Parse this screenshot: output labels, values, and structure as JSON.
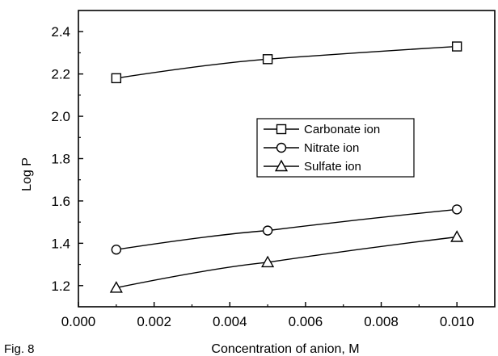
{
  "figure_label": "Fig. 8",
  "chart_data": {
    "type": "line",
    "title": "",
    "xlabel": "Concentration of anion, M",
    "ylabel": "Log P",
    "xlim": [
      0.0,
      0.011
    ],
    "ylim": [
      1.1,
      2.5
    ],
    "x_ticks": [
      0.0,
      0.002,
      0.004,
      0.006,
      0.008,
      0.01
    ],
    "x_tick_labels": [
      "0.000",
      "0.002",
      "0.004",
      "0.006",
      "0.008",
      "0.010"
    ],
    "y_ticks": [
      1.2,
      1.4,
      1.6,
      1.8,
      2.0,
      2.2,
      2.4
    ],
    "y_tick_labels": [
      "1.2",
      "1.4",
      "1.6",
      "1.8",
      "2.0",
      "2.2",
      "2.4"
    ],
    "grid": false,
    "legend_position": "center-right",
    "series": [
      {
        "name": "Carbonate ion",
        "marker": "square",
        "x": [
          0.001,
          0.005,
          0.01
        ],
        "y": [
          2.18,
          2.27,
          2.33
        ]
      },
      {
        "name": "Nitrate ion",
        "marker": "circle",
        "x": [
          0.001,
          0.005,
          0.01
        ],
        "y": [
          1.37,
          1.46,
          1.56
        ]
      },
      {
        "name": "Sulfate ion",
        "marker": "triangle",
        "x": [
          0.001,
          0.005,
          0.01
        ],
        "y": [
          1.19,
          1.31,
          1.43
        ]
      }
    ]
  }
}
